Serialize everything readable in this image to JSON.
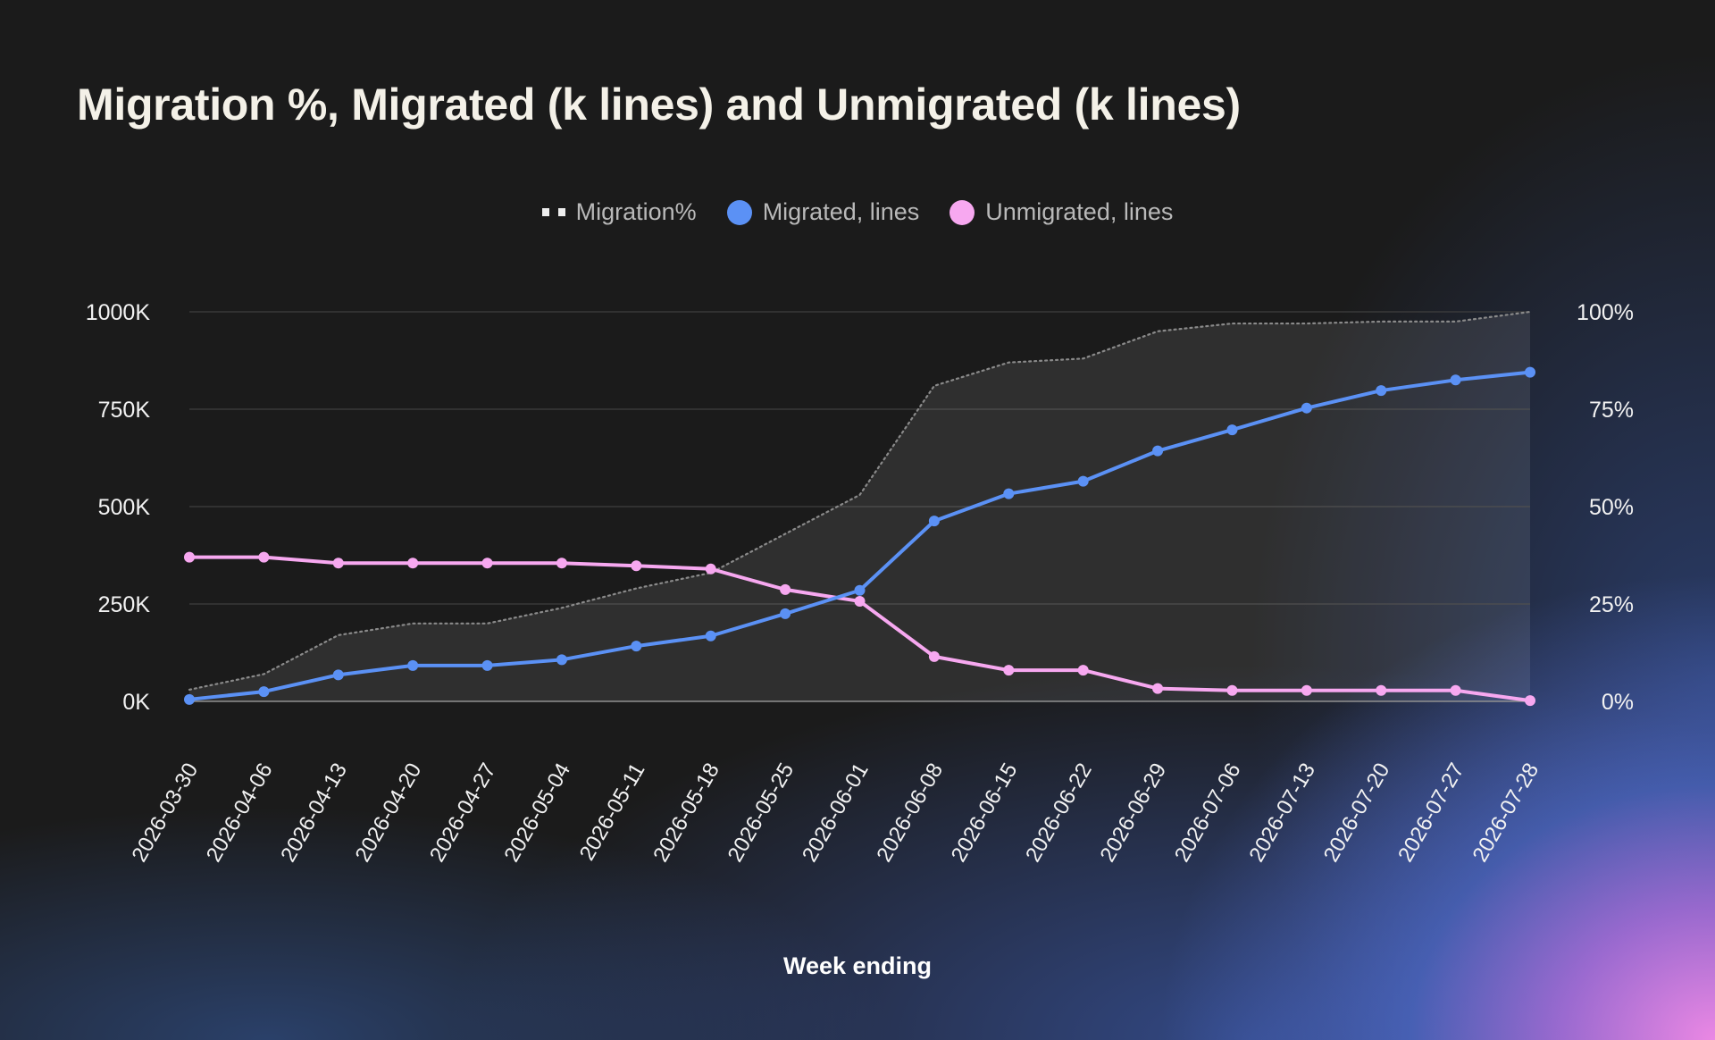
{
  "chart_data": {
    "type": "line",
    "title": "Migration %, Migrated (k lines) and Unmigrated (k lines)",
    "xlabel": "Week ending",
    "ylabel": "",
    "y2label": "",
    "ylim": [
      0,
      1000
    ],
    "y2lim": [
      0,
      100
    ],
    "y_ticks": [
      "0K",
      "250K",
      "500K",
      "750K",
      "1000K"
    ],
    "y2_ticks": [
      "0%",
      "25%",
      "50%",
      "75%",
      "100%"
    ],
    "legend_position": "top-center",
    "grid": true,
    "categories": [
      "2026-03-30",
      "2026-04-06",
      "2026-04-13",
      "2026-04-20",
      "2026-04-27",
      "2026-05-04",
      "2026-05-11",
      "2026-05-18",
      "2026-05-25",
      "2026-06-01",
      "2026-06-08",
      "2026-06-15",
      "2026-06-22",
      "2026-06-29",
      "2026-07-06",
      "2026-07-13",
      "2026-07-20",
      "2026-07-27",
      "2026-07-28"
    ],
    "series": [
      {
        "name": "Migration%",
        "axis": "right",
        "style": "dotted-area",
        "color": "#8a8a8a",
        "values": [
          3,
          7,
          17,
          20,
          20,
          24,
          29,
          33,
          43,
          53,
          81,
          87,
          88,
          95,
          97,
          97,
          97.5,
          97.5,
          100
        ]
      },
      {
        "name": "Migrated, lines",
        "axis": "left",
        "style": "line-markers",
        "color": "#5b91f5",
        "values": [
          5,
          25,
          68,
          92,
          92,
          107,
          142,
          168,
          225,
          285,
          463,
          533,
          565,
          643,
          697,
          753,
          798,
          825,
          845
        ]
      },
      {
        "name": "Unmigrated, lines",
        "axis": "left",
        "style": "line-markers",
        "color": "#f7a8f0",
        "values": [
          370,
          370,
          355,
          355,
          355,
          355,
          348,
          340,
          287,
          257,
          115,
          80,
          80,
          33,
          28,
          28,
          28,
          28,
          2
        ]
      }
    ]
  }
}
